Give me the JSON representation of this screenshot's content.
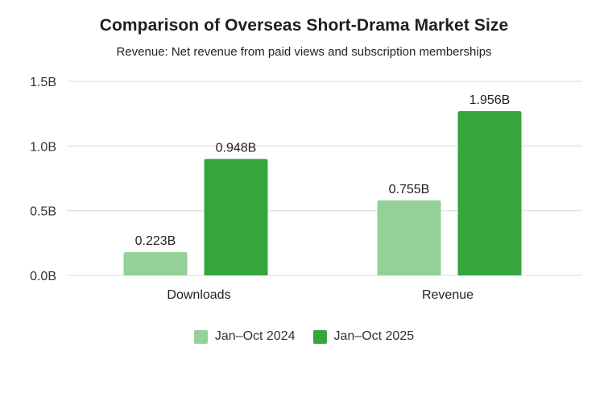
{
  "chart_data": {
    "type": "bar",
    "title": "Comparison of Overseas Short-Drama Market Size",
    "subtitle": "Revenue: Net revenue from paid views and subscription memberships",
    "xlabel": "",
    "ylabel": "",
    "categories": [
      "Downloads",
      "Revenue"
    ],
    "series": [
      {
        "name": "Jan–Oct 2024",
        "color": "#93d196",
        "values": [
          0.223,
          0.755
        ],
        "labels": [
          "0.223B",
          "0.755B"
        ],
        "drawn_heights": [
          0.18,
          0.58
        ]
      },
      {
        "name": "Jan–Oct 2025",
        "color": "#37a53d",
        "values": [
          0.948,
          1.956
        ],
        "labels": [
          "0.948B",
          "1.956B"
        ],
        "drawn_heights": [
          0.9,
          1.27
        ]
      }
    ],
    "ylim": [
      0,
      1.5
    ],
    "yticks": [
      {
        "value": 0.0,
        "label": "0.0B"
      },
      {
        "value": 0.5,
        "label": "0.5B"
      },
      {
        "value": 1.0,
        "label": "1.0B"
      },
      {
        "value": 1.5,
        "label": "1.5B"
      }
    ],
    "grid": true,
    "legend_position": "bottom-center",
    "gridline_color": "#e3e3e3"
  }
}
